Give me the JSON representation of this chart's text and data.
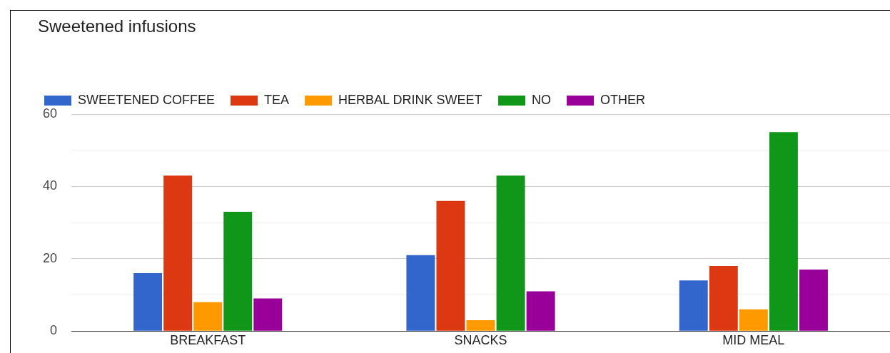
{
  "chart_data": {
    "type": "bar",
    "title": "Sweetened infusions",
    "categories": [
      "BREAKFAST",
      "SNACKS",
      "MID MEAL"
    ],
    "series": [
      {
        "name": "SWEETENED COFFEE",
        "color": "#3366cc",
        "values": [
          16,
          21,
          14
        ]
      },
      {
        "name": "TEA",
        "color": "#dc3912",
        "values": [
          43,
          36,
          18
        ]
      },
      {
        "name": "HERBAL DRINK SWEET",
        "color": "#ff9900",
        "values": [
          8,
          3,
          6
        ]
      },
      {
        "name": "NO",
        "color": "#109618",
        "values": [
          33,
          43,
          55
        ]
      },
      {
        "name": "OTHER",
        "color": "#990099",
        "values": [
          9,
          11,
          17
        ]
      }
    ],
    "ylim": [
      0,
      60
    ],
    "yticks": [
      0,
      {
        "value": 10,
        "label": null
      },
      20,
      {
        "value": 30,
        "label": null
      },
      40,
      {
        "value": 50,
        "label": null
      },
      60
    ],
    "grid": "y",
    "legend": "top left"
  }
}
